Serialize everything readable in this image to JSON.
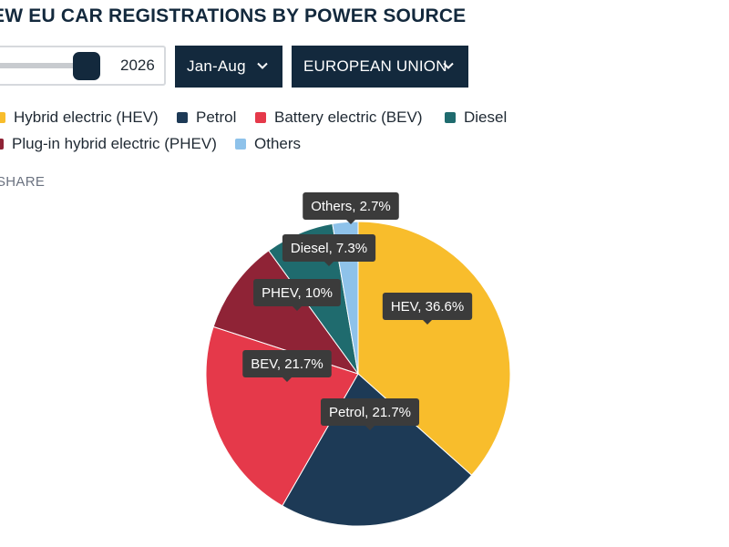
{
  "header": {
    "title": "EW EU CAR REGISTRATIONS BY POWER SOURCE"
  },
  "controls": {
    "year": "2026",
    "period": "Jan-Aug",
    "region": "EUROPEAN UNION"
  },
  "section_label": "SHARE",
  "colors": {
    "HEV": "#f8bd2c",
    "Petrol": "#1d3a56",
    "BEV": "#e5394a",
    "Diesel": "#1f6b6e",
    "PHEV": "#8f2336",
    "Others": "#8ec2ea",
    "tooltip": "#3b3b3b",
    "dropdown_bg": "#13293d"
  },
  "legend": [
    {
      "key": "HEV",
      "label": "Hybrid electric (HEV)"
    },
    {
      "key": "Petrol",
      "label": "Petrol"
    },
    {
      "key": "BEV",
      "label": "Battery electric (BEV)"
    },
    {
      "key": "Diesel",
      "label": "Diesel"
    },
    {
      "key": "PHEV",
      "label": "Plug-in hybrid electric (PHEV)"
    },
    {
      "key": "Others",
      "label": "Others"
    }
  ],
  "chart_data": {
    "type": "pie",
    "slices": [
      {
        "key": "HEV",
        "value": 36.6,
        "label": "HEV, 36.6%"
      },
      {
        "key": "Petrol",
        "value": 21.7,
        "label": "Petrol, 21.7%"
      },
      {
        "key": "BEV",
        "value": 21.7,
        "label": "BEV, 21.7%"
      },
      {
        "key": "PHEV",
        "value": 10,
        "label": "PHEV, 10%"
      },
      {
        "key": "Diesel",
        "value": 7.3,
        "label": "Diesel, 7.3%"
      },
      {
        "key": "Others",
        "value": 2.7,
        "label": "Others, 2.7%"
      }
    ],
    "unit": "%"
  }
}
